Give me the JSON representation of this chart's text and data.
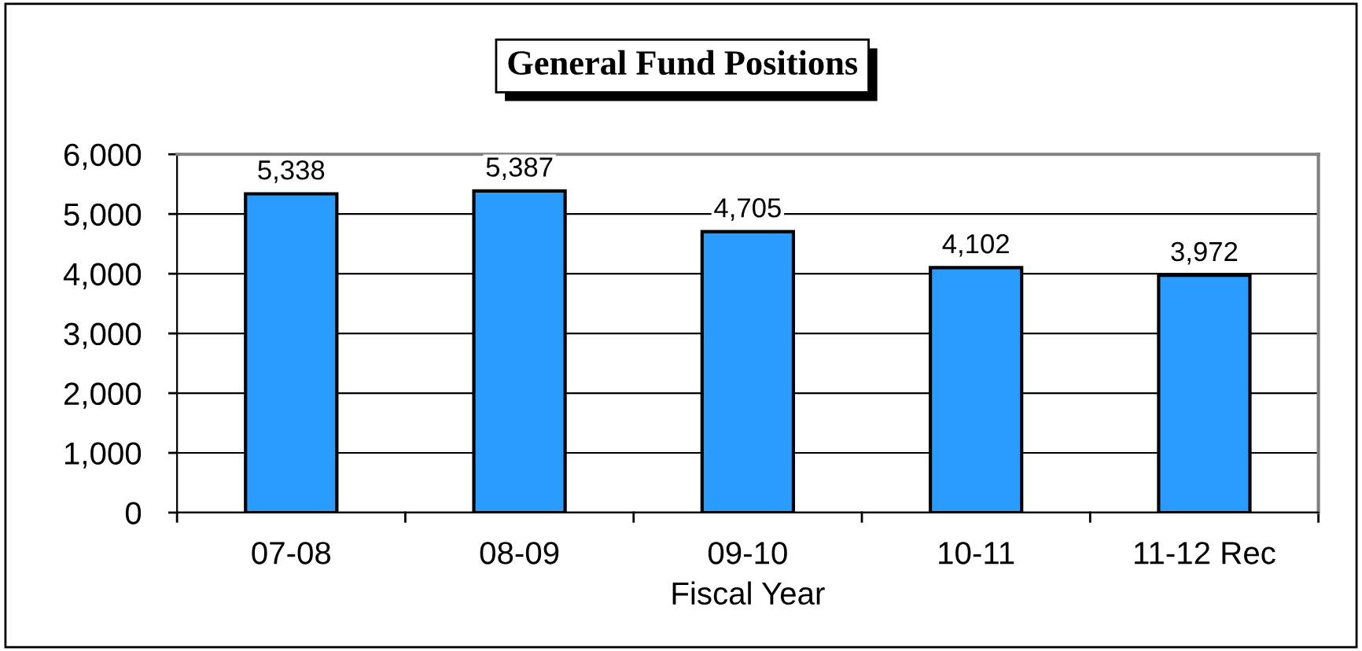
{
  "chart_data": {
    "type": "bar",
    "title": "General Fund Positions",
    "xlabel": "Fiscal Year",
    "categories": [
      "07-08",
      "08-09",
      "09-10",
      "10-11",
      "11-12 Rec"
    ],
    "values": [
      5338,
      5387,
      4705,
      4102,
      3972
    ],
    "color": "#2a9cff",
    "ylim": [
      0,
      6000
    ],
    "yticks": [
      {
        "value": 0,
        "label": "0"
      },
      {
        "value": 1000,
        "label": "1,000"
      },
      {
        "value": 2000,
        "label": "2,000"
      },
      {
        "value": 3000,
        "label": "3,000"
      },
      {
        "value": 4000,
        "label": "4,000"
      },
      {
        "value": 5000,
        "label": "5,000"
      },
      {
        "value": 6000,
        "label": "6,000"
      }
    ],
    "grid": "y",
    "legend": false,
    "value_labels": [
      "5,338",
      "5,387",
      "4,705",
      "4,102",
      "3,972"
    ]
  }
}
